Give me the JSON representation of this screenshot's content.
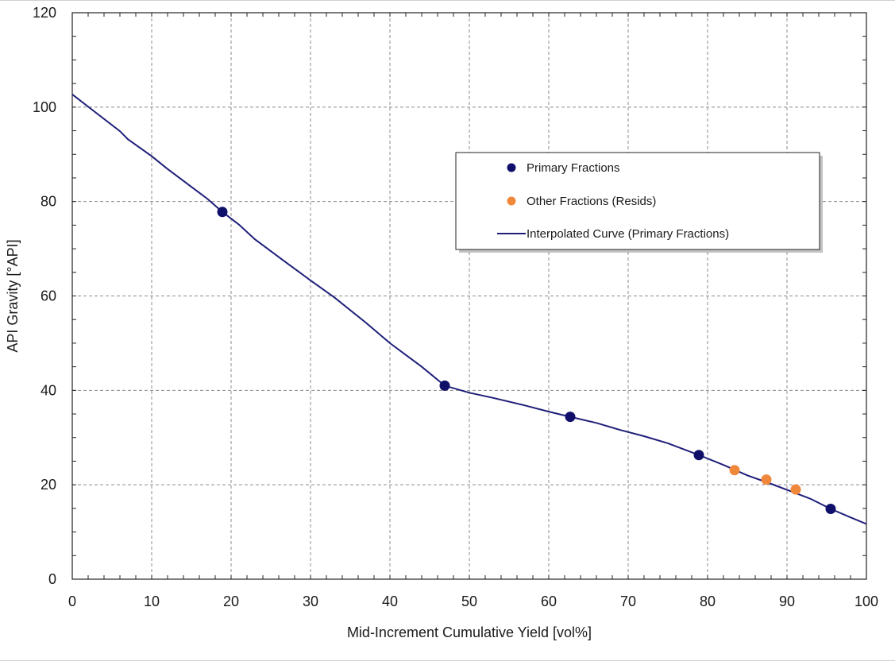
{
  "chart_data": {
    "type": "line",
    "title": "",
    "xlabel": "Mid-Increment Cumulative Yield [vol%]",
    "ylabel": "API Gravity [°API]",
    "xlim": [
      0,
      100
    ],
    "ylim": [
      0,
      120
    ],
    "x_ticks": [
      0,
      10,
      20,
      30,
      40,
      50,
      60,
      70,
      80,
      90,
      100
    ],
    "y_ticks": [
      0,
      20,
      40,
      60,
      80,
      100,
      120
    ],
    "grid": true,
    "legend_position": "upper-right",
    "series": [
      {
        "name": "Primary Fractions",
        "kind": "scatter",
        "color": "#10106b",
        "points": [
          [
            18.9,
            77.8
          ],
          [
            46.9,
            41.0
          ],
          [
            62.7,
            34.4
          ],
          [
            78.9,
            26.3
          ],
          [
            95.5,
            14.9
          ]
        ]
      },
      {
        "name": "Other Fractions (Resids)",
        "kind": "scatter",
        "color": "#f0883c",
        "points": [
          [
            83.4,
            23.1
          ],
          [
            87.4,
            21.1
          ],
          [
            91.1,
            19.0
          ]
        ]
      },
      {
        "name": "Interpolated Curve (Primary Fractions)",
        "kind": "line",
        "color": "#1f1f7a",
        "points": [
          [
            0,
            102.7
          ],
          [
            3,
            98.8
          ],
          [
            6,
            94.9
          ],
          [
            7,
            93.2
          ],
          [
            10,
            89.6
          ],
          [
            12,
            86.9
          ],
          [
            15,
            83.1
          ],
          [
            17,
            80.6
          ],
          [
            18.9,
            77.8
          ],
          [
            21,
            75.1
          ],
          [
            23,
            72.0
          ],
          [
            27,
            67.0
          ],
          [
            30,
            63.3
          ],
          [
            33,
            59.7
          ],
          [
            37,
            54.3
          ],
          [
            40,
            50.0
          ],
          [
            44,
            45.0
          ],
          [
            46.9,
            41.0
          ],
          [
            50,
            39.5
          ],
          [
            53,
            38.4
          ],
          [
            57,
            36.8
          ],
          [
            60,
            35.5
          ],
          [
            62.7,
            34.4
          ],
          [
            66,
            33.1
          ],
          [
            69,
            31.6
          ],
          [
            72,
            30.3
          ],
          [
            75,
            28.8
          ],
          [
            78.9,
            26.3
          ],
          [
            82,
            24.2
          ],
          [
            85,
            22.0
          ],
          [
            88,
            20.2
          ],
          [
            91,
            18.3
          ],
          [
            93,
            17.0
          ],
          [
            95.5,
            14.9
          ],
          [
            98,
            13.1
          ],
          [
            100,
            11.7
          ]
        ]
      }
    ]
  }
}
